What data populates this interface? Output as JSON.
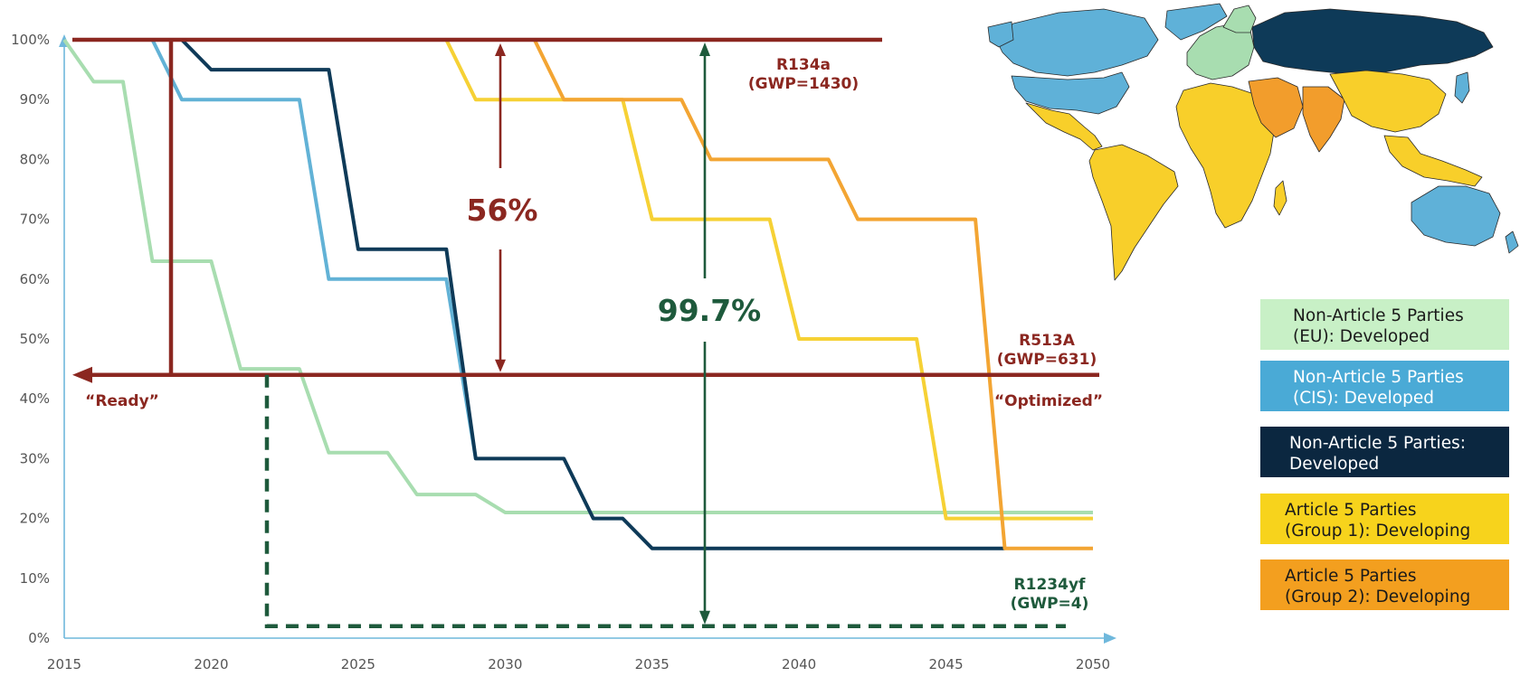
{
  "chart_data": {
    "type": "line",
    "x_ticks": [
      "2015",
      "2020",
      "2025",
      "2030",
      "2035",
      "2040",
      "2045",
      "2050"
    ],
    "y_ticks": [
      "0%",
      "10%",
      "20%",
      "30%",
      "40%",
      "50%",
      "60%",
      "70%",
      "80%",
      "90%",
      "100%"
    ],
    "xlim": [
      2015,
      2050
    ],
    "ylim": [
      0,
      100
    ],
    "series": [
      {
        "name": "Non-Article 5 Parties (EU): Developed",
        "color": "#a8ddb0",
        "x": [
          2015,
          2016,
          2017,
          2018,
          2020,
          2021,
          2023,
          2024,
          2026,
          2027,
          2029,
          2030,
          2050
        ],
        "y": [
          100,
          93,
          93,
          63,
          63,
          45,
          45,
          31,
          31,
          24,
          24,
          21,
          21
        ]
      },
      {
        "name": "Non-Article 5 Parties (CIS): Developed",
        "color": "#62b2d6",
        "x": [
          2018,
          2019,
          2023,
          2024,
          2028,
          2029
        ],
        "y": [
          100,
          90,
          90,
          60,
          60,
          30
        ]
      },
      {
        "name": "Non-Article 5 Parties: Developed",
        "color": "#0e3a58",
        "x": [
          2019,
          2020,
          2024,
          2025,
          2028,
          2029,
          2032,
          2033,
          2034,
          2035,
          2047
        ],
        "y": [
          100,
          95,
          95,
          65,
          65,
          30,
          30,
          20,
          20,
          15,
          15
        ]
      },
      {
        "name": "Article 5 Parties (Group 1): Developing",
        "color": "#f6d135",
        "x": [
          2028,
          2029,
          2034,
          2035,
          2039,
          2040,
          2044,
          2045,
          2050
        ],
        "y": [
          100,
          90,
          90,
          70,
          70,
          50,
          50,
          20,
          20
        ]
      },
      {
        "name": "Article 5 Parties (Group 2): Developing",
        "color": "#f3a533",
        "x": [
          2031,
          2032,
          2036,
          2037,
          2041,
          2042,
          2046,
          2047,
          2050
        ],
        "y": [
          100,
          90,
          90,
          80,
          80,
          70,
          70,
          15,
          15
        ]
      }
    ],
    "reference_lines": [
      {
        "label": "R134a",
        "sublabel": "(GWP=1430)",
        "y": 100,
        "color": "#8b2720"
      },
      {
        "label": "R513A",
        "sublabel": "(GWP=631)",
        "y": 44,
        "color": "#8b2720"
      },
      {
        "label": "R1234yf",
        "sublabel": "(GWP=4)",
        "y": 2,
        "color": "#1e5a3c"
      }
    ],
    "annotations": {
      "ready": "“Ready”",
      "optimized": "“Optimized”",
      "reduction_r513a": "56%",
      "reduction_r1234yf": "99.7%"
    }
  },
  "legend": [
    {
      "line1": "Non-Article 5 Parties",
      "line2": "(EU): Developed",
      "bg": "#c8f0c6",
      "fg": "#1a1a1a"
    },
    {
      "line1": "Non-Article 5 Parties",
      "line2": "(CIS): Developed",
      "bg": "#4aaad6",
      "fg": "#ffffff"
    },
    {
      "line1": "Non-Article 5 Parties:",
      "line2": "Developed",
      "bg": "#0b2740",
      "fg": "#ffffff"
    },
    {
      "line1": "Article 5 Parties",
      "line2": "(Group 1): Developing",
      "bg": "#f7d31c",
      "fg": "#1a1a1a"
    },
    {
      "line1": "Article 5 Parties",
      "line2": "(Group 2): Developing",
      "bg": "#f39f1f",
      "fg": "#1a1a1a"
    }
  ],
  "map": {
    "colors": {
      "eu": "#a8ddb0",
      "cis": "#0e3a58",
      "developed": "#5fb1d8",
      "group1": "#f8cf2a",
      "group2": "#f29d2c"
    }
  }
}
